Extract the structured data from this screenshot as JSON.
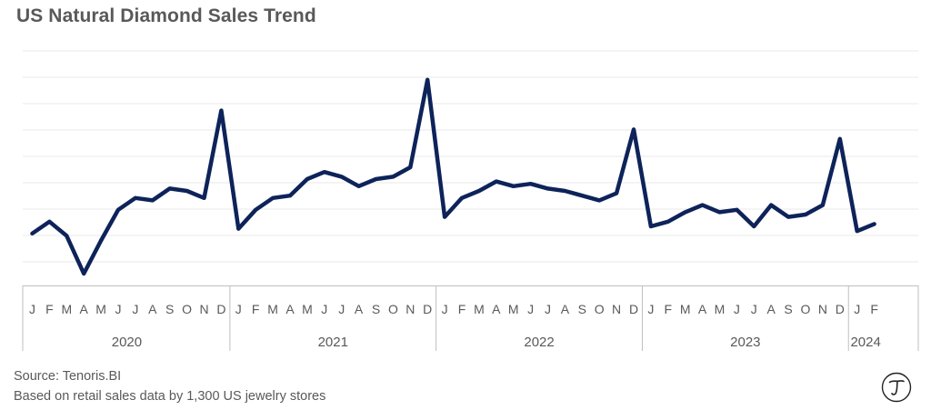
{
  "title": "US Natural Diamond Sales Trend",
  "source_line": "Source: Tenoris.BI",
  "note_line": "Based on retail sales data by 1,300 US jewelry stores",
  "logo_icon": "tenoris-t-logo-icon",
  "line_color": "#0d2359",
  "chart_data": {
    "type": "line",
    "title": "US Natural Diamond Sales Trend",
    "xlabel": "",
    "ylabel": "",
    "y_axis_labels": "none",
    "ylim": [
      0,
      100
    ],
    "grid": "horizontal",
    "legend": "none",
    "month_labels": [
      "J",
      "F",
      "M",
      "A",
      "M",
      "J",
      "J",
      "A",
      "S",
      "O",
      "N",
      "D",
      "J",
      "F",
      "M",
      "A",
      "M",
      "J",
      "J",
      "A",
      "S",
      "O",
      "N",
      "D",
      "J",
      "F",
      "M",
      "A",
      "M",
      "J",
      "J",
      "A",
      "S",
      "O",
      "N",
      "D",
      "J",
      "F",
      "M",
      "A",
      "M",
      "J",
      "J",
      "A",
      "S",
      "O",
      "N",
      "D",
      "J",
      "F"
    ],
    "year_groups": [
      {
        "year": "2020",
        "months": 12
      },
      {
        "year": "2021",
        "months": 12
      },
      {
        "year": "2022",
        "months": 12
      },
      {
        "year": "2023",
        "months": 12
      },
      {
        "year": "2024",
        "months": 2
      }
    ],
    "series": [
      {
        "values": [
          22,
          27,
          21,
          5,
          19,
          32,
          37,
          36,
          41,
          40,
          37,
          74,
          24,
          32,
          37,
          38,
          45,
          48,
          46,
          42,
          45,
          46,
          50,
          87,
          29,
          37,
          40,
          44,
          42,
          43,
          41,
          40,
          38,
          36,
          39,
          66,
          25,
          27,
          31,
          34,
          31,
          32,
          25,
          34,
          29,
          30,
          34,
          62,
          23,
          26
        ]
      }
    ]
  }
}
